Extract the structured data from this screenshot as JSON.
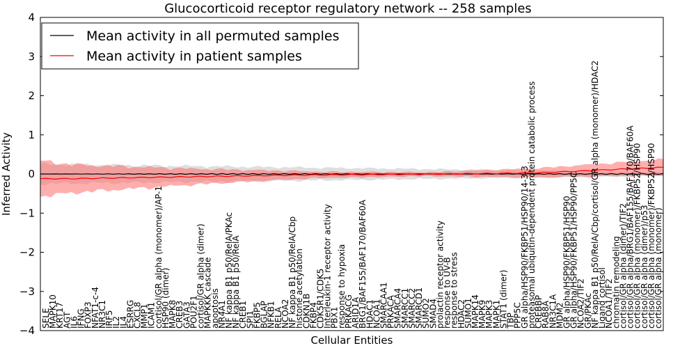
{
  "chart_data": {
    "type": "line",
    "title": "Glucocorticoid receptor regulatory network -- 258 samples",
    "xlabel": "Cellular Entities",
    "ylabel": "Inferred Activity",
    "ylim": [
      -4,
      4
    ],
    "yticks": [
      "−4",
      "−3",
      "−2",
      "−1",
      "0",
      "1",
      "2",
      "3",
      "4"
    ],
    "legend_position": "upper-left",
    "colors": {
      "permuted": "#000000",
      "patient": "#ff0000",
      "permuted_band": "#c8c8c8",
      "patient_band": "#ff6b6b"
    },
    "series": [
      {
        "name": "Mean activity in all permuted samples",
        "key": "permuted"
      },
      {
        "name": "Mean activity in patient samples",
        "key": "patient"
      }
    ],
    "permuted_mean": 0.0,
    "permuted_band_halfwidth_range": [
      0.25,
      0.05
    ],
    "patient_mean_control_points": [
      [
        0,
        -0.12
      ],
      [
        0.05,
        -0.12
      ],
      [
        0.2,
        -0.08
      ],
      [
        0.4,
        -0.03
      ],
      [
        0.65,
        0.0
      ],
      [
        0.8,
        0.03
      ],
      [
        0.9,
        0.1
      ],
      [
        1.0,
        0.17
      ]
    ],
    "patient_band_halfwidth_control_points": [
      [
        0,
        0.45
      ],
      [
        0.06,
        0.35
      ],
      [
        0.25,
        0.2
      ],
      [
        0.45,
        0.08
      ],
      [
        0.62,
        0.05
      ],
      [
        0.8,
        0.12
      ],
      [
        1.0,
        0.2
      ]
    ],
    "entities": [
      "SELE",
      "MAPK10",
      "KRT17",
      "AGT",
      "IL6",
      "IFNG",
      "FOXP3",
      "NFAT1-c-4",
      "NR3C1",
      "IRF5",
      "IL2",
      "IL4",
      "ESRRG",
      "CXCL8",
      "MMP1",
      "ICAM1",
      "cortisol/GR alpha (monomer)/AP-1",
      "HSP90 (dimer)",
      "MAPK8",
      "CREB3",
      "GATA3",
      "POU2F1",
      "cortisol/GR alpha (dimer)",
      "MAPKKK cascade",
      "apoptosis",
      "NR4A1",
      "NF kappa B1 p50/RelA/PKAc",
      "NF kappa B1 p50/RelA",
      "CREB1",
      "SPI1",
      "FKBP5",
      "BGLAP",
      "NFKB1",
      "RELA",
      "NCOA2",
      "NF kappa B1 p50/RelA/Cbp",
      "histone acetylation",
      "CDKN1B",
      "FKBP4",
      "CDK5R1/CDK5",
      "Interleukin-1 receptor activity",
      "PBX1",
      "response to hypoxia",
      "PRKACG",
      "ARID1A",
      "BRG1/BAF155/BAF170/BAF60A",
      "HDAC1",
      "NCOA1",
      "SMARCAA1",
      "PRKACA",
      "SMARCA4",
      "SMARCC1",
      "SMARCC2",
      "SMARCD1",
      "SUMO2",
      "SMAD4",
      "prolactin receptor activity",
      "response to UV-B",
      "response to stress",
      "HDAC2",
      "SUMO1",
      "MAPK14",
      "MAPK9",
      "MAPK3",
      "MAPK1",
      "STAT1 (dimer)",
      "TBP",
      "PPP5C",
      "GR alpha/HSP90/FKBP51/HSP90/14-3-3",
      "proteasomal ubiquitin-dependent protein catabolic process",
      "CREBBP",
      "RAB8A",
      "NR3C1A",
      "MDM2",
      "GR alpha/HSP90/FKBP51/HSP90",
      "GR alpha/HSP90/FKBP51/HSP90/PP5C",
      "NCOA2/TIF2",
      "GR/PKAc",
      "NF kappa B1 p50/RelA/Cbp/cortisol/GR alpha (monomer)/HDAC2",
      "Ligand cortisol",
      "NCOA1/TIF2",
      "chromatin remodeling",
      "cortisol/GR alpha (dimer)/TIF2",
      "cortisol/GR alpha/BRG1/BAF155/BAF170/BAF60A",
      "cortisol/GR alpha (monomer)/FKBP52/HSP90",
      "cortisol/GR alpha (dimer)/p53",
      "cortisol/GR alpha (monomer)/FKBP52/HSP90",
      "cortisol/GR alpha (monomer)"
    ]
  }
}
